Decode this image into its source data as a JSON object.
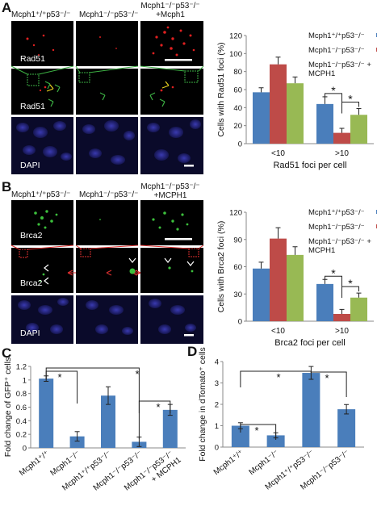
{
  "panels": {
    "A": {
      "letter": "A",
      "columns": [
        "Mcph1⁺/⁺p53⁻/⁻",
        "Mcph1⁻/⁻p53⁻/⁻",
        "Mcph1⁻/⁻p53⁻/⁻",
        "+Mcph1"
      ],
      "row_labels": [
        "Rad51",
        "Rad51",
        "DAPI"
      ]
    },
    "B": {
      "letter": "B",
      "columns": [
        "Mcph1⁺/⁺p53⁻/⁻",
        "Mcph1⁻/⁻p53⁻/⁻",
        "Mcph1⁻/⁻p53⁻/⁻",
        "+MCPH1"
      ],
      "row_labels": [
        "Brca2",
        "Brca2",
        "DAPI"
      ]
    },
    "C": {
      "letter": "C"
    },
    "D": {
      "letter": "D"
    }
  },
  "colors": {
    "blue": "#4a7ebb",
    "red": "#be4b48",
    "green": "#98b954"
  },
  "chart_data": [
    {
      "id": "A",
      "type": "bar",
      "categories": [
        "<10",
        ">10"
      ],
      "series": [
        {
          "name": "Mcph1⁺/⁺p53⁻/⁻",
          "values": [
            57,
            44
          ],
          "errors": [
            5,
            8
          ]
        },
        {
          "name": "Mcph1⁻/⁻p53⁻/⁻",
          "values": [
            88,
            12
          ],
          "errors": [
            8,
            5
          ]
        },
        {
          "name": "Mcph1⁻/⁻p53⁻/⁻ + MCPH1",
          "values": [
            67,
            32
          ],
          "errors": [
            7,
            7
          ]
        }
      ],
      "ylabel": "Cells with Rad51 foci (%)",
      "xlabel": "Rad51 foci per cell",
      "ylim": [
        0,
        120
      ],
      "yticks": [
        0,
        20,
        40,
        60,
        80,
        100,
        120
      ],
      "significance": [
        "*",
        "*"
      ]
    },
    {
      "id": "B",
      "type": "bar",
      "categories": [
        "<10",
        ">10"
      ],
      "series": [
        {
          "name": "Mcph1⁺/⁺p53⁻/⁻",
          "values": [
            58,
            41
          ],
          "errors": [
            7,
            5
          ]
        },
        {
          "name": "Mcph1⁻/⁻p53⁻/⁻",
          "values": [
            91,
            8
          ],
          "errors": [
            12,
            5
          ]
        },
        {
          "name": "Mcph1⁻/⁻p53⁻/⁻ + MCPH1",
          "values": [
            73,
            26
          ],
          "errors": [
            9,
            5
          ]
        }
      ],
      "ylabel": "Cells with Brca2 foci (%)",
      "xlabel": "Brca2 foci per cell",
      "ylim": [
        0,
        120
      ],
      "yticks": [
        0,
        30,
        60,
        90,
        120
      ],
      "significance": [
        "*",
        "*"
      ]
    },
    {
      "id": "C",
      "type": "bar",
      "categories": [
        "Mcph1⁺/⁺",
        "Mcph1⁻/⁻",
        "Mcph1⁺/⁺p53⁻/⁻",
        "Mcph1⁻/⁻p53⁻/⁻",
        "Mcph1⁻/⁻p53⁻/⁻ + MCPH1"
      ],
      "values": [
        1.02,
        0.17,
        0.77,
        0.09,
        0.56
      ],
      "errors": [
        0.04,
        0.07,
        0.13,
        0.07,
        0.08
      ],
      "ylabel": "Fold change of GFP⁺ cells",
      "ylim": [
        0,
        1.2
      ],
      "yticks": [
        "0",
        "0.2",
        "0.4",
        "0.6",
        "0.8",
        "1",
        "1.2"
      ],
      "significance": [
        "*",
        "*",
        "*"
      ]
    },
    {
      "id": "D",
      "type": "bar",
      "categories": [
        "Mcph1⁺/⁺",
        "Mcph1⁻/⁻",
        "Mcph1⁺/⁺p53⁻/⁻",
        "Mcph1⁻/⁻p53⁻/⁻"
      ],
      "values": [
        1.0,
        0.55,
        3.47,
        1.77
      ],
      "errors": [
        0.14,
        0.12,
        0.3,
        0.22
      ],
      "ylabel": "Fold change in dTomato⁺ cells",
      "ylim": [
        0,
        4
      ],
      "yticks": [
        "0",
        "1",
        "2",
        "3",
        "4"
      ],
      "significance": [
        "*",
        "*",
        "*"
      ]
    }
  ]
}
